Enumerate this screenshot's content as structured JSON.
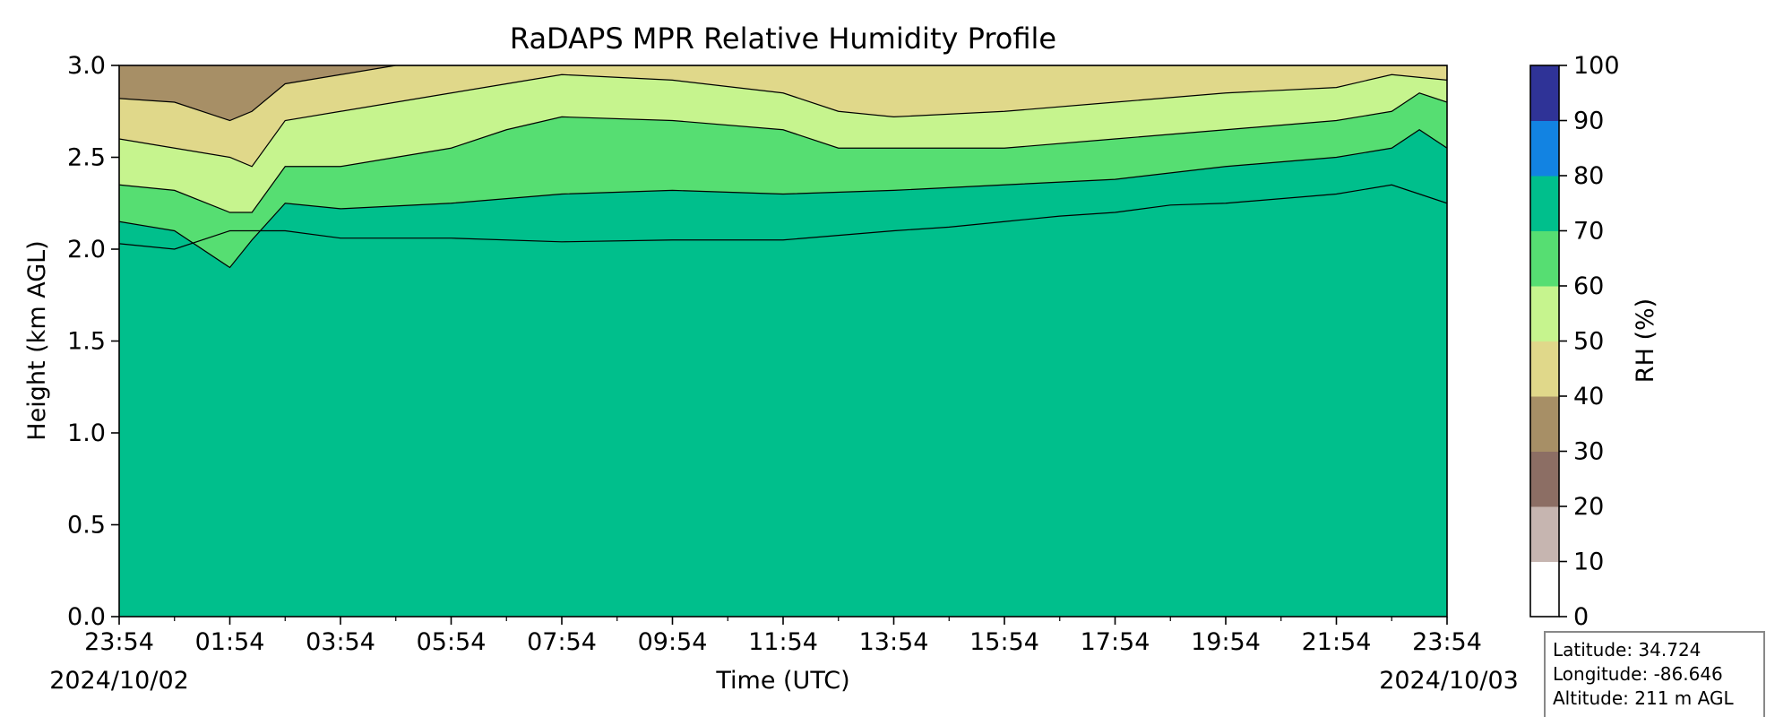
{
  "chart_data": {
    "type": "heatmap",
    "title": "RaDAPS MPR Relative Humidity Profile",
    "xlabel": "Time (UTC)",
    "ylabel": "Height (km AGL)",
    "x_ticks": [
      "23:54",
      "01:54",
      "03:54",
      "05:54",
      "07:54",
      "09:54",
      "11:54",
      "13:54",
      "15:54",
      "17:54",
      "19:54",
      "21:54",
      "23:54"
    ],
    "x_minor_ticks_hours": [
      1,
      3,
      5,
      7,
      9,
      11,
      13,
      15,
      17,
      19,
      21,
      23
    ],
    "x_range_hours": [
      0,
      24
    ],
    "start_date": "2024/10/02",
    "end_date": "2024/10/03",
    "y_ticks": [
      "0.0",
      "0.5",
      "1.0",
      "1.5",
      "2.0",
      "2.5",
      "3.0"
    ],
    "ylim": [
      0.0,
      3.0
    ],
    "colorbar": {
      "label": "RH (%)",
      "ticks": [
        "0",
        "10",
        "20",
        "30",
        "40",
        "50",
        "60",
        "70",
        "80",
        "90",
        "100"
      ],
      "levels": [
        0,
        10,
        20,
        30,
        40,
        50,
        60,
        70,
        80,
        90,
        100
      ],
      "colors": [
        "#ffffff",
        "#c6b5b0",
        "#8c6e64",
        "#a78f66",
        "#e0d88a",
        "#c6f48e",
        "#56de72",
        "#00bf8c",
        "#1283e2",
        "#2f3397"
      ]
    },
    "boundaries_km": [
      {
        "level": 70,
        "points": [
          [
            0,
            2.03
          ],
          [
            1,
            2.0
          ],
          [
            2,
            2.1
          ],
          [
            3,
            2.1
          ],
          [
            4,
            2.06
          ],
          [
            6,
            2.06
          ],
          [
            8,
            2.04
          ],
          [
            10,
            2.05
          ],
          [
            12,
            2.05
          ],
          [
            14,
            2.1
          ],
          [
            15,
            2.12
          ],
          [
            16,
            2.15
          ],
          [
            17,
            2.18
          ],
          [
            18,
            2.2
          ],
          [
            19,
            2.24
          ],
          [
            20,
            2.25
          ],
          [
            22,
            2.3
          ],
          [
            23,
            2.35
          ],
          [
            23.5,
            2.3
          ],
          [
            24,
            2.25
          ]
        ]
      },
      {
        "level": 60,
        "points": [
          [
            0,
            2.15
          ],
          [
            1,
            2.1
          ],
          [
            2,
            1.9
          ],
          [
            2.4,
            2.05
          ],
          [
            3,
            2.25
          ],
          [
            4,
            2.22
          ],
          [
            6,
            2.25
          ],
          [
            8,
            2.3
          ],
          [
            10,
            2.32
          ],
          [
            12,
            2.3
          ],
          [
            14,
            2.32
          ],
          [
            16,
            2.35
          ],
          [
            18,
            2.38
          ],
          [
            20,
            2.45
          ],
          [
            22,
            2.5
          ],
          [
            23,
            2.55
          ],
          [
            23.5,
            2.65
          ],
          [
            24,
            2.55
          ]
        ]
      },
      {
        "level": 50,
        "points": [
          [
            0,
            2.35
          ],
          [
            1,
            2.32
          ],
          [
            2,
            2.2
          ],
          [
            2.4,
            2.2
          ],
          [
            3,
            2.45
          ],
          [
            4,
            2.45
          ],
          [
            6,
            2.55
          ],
          [
            7,
            2.65
          ],
          [
            8,
            2.72
          ],
          [
            10,
            2.7
          ],
          [
            12,
            2.65
          ],
          [
            13,
            2.55
          ],
          [
            14,
            2.55
          ],
          [
            16,
            2.55
          ],
          [
            18,
            2.6
          ],
          [
            20,
            2.65
          ],
          [
            22,
            2.7
          ],
          [
            23,
            2.75
          ],
          [
            23.5,
            2.85
          ],
          [
            24,
            2.8
          ]
        ]
      },
      {
        "level": 40,
        "points": [
          [
            0,
            2.6
          ],
          [
            1,
            2.55
          ],
          [
            2,
            2.5
          ],
          [
            2.4,
            2.45
          ],
          [
            3,
            2.7
          ],
          [
            4,
            2.75
          ],
          [
            6,
            2.85
          ],
          [
            7,
            2.9
          ],
          [
            8,
            2.95
          ],
          [
            10,
            2.92
          ],
          [
            12,
            2.85
          ],
          [
            13,
            2.75
          ],
          [
            14,
            2.72
          ],
          [
            16,
            2.75
          ],
          [
            18,
            2.8
          ],
          [
            20,
            2.85
          ],
          [
            22,
            2.88
          ],
          [
            23,
            2.95
          ],
          [
            24,
            2.92
          ]
        ]
      },
      {
        "level": 30,
        "points": [
          [
            0,
            2.82
          ],
          [
            1,
            2.8
          ],
          [
            2,
            2.7
          ],
          [
            2.4,
            2.75
          ],
          [
            3,
            2.9
          ],
          [
            4,
            2.95
          ],
          [
            5,
            3.0
          ],
          [
            24,
            3.0
          ]
        ]
      }
    ],
    "annotations": [
      "Latitude: 34.724",
      "Longitude: -86.646",
      "Altitude: 211 m AGL"
    ]
  }
}
